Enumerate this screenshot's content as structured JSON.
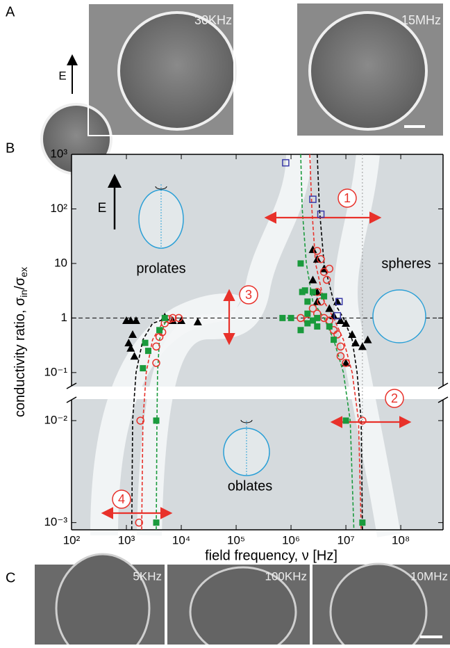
{
  "panels": {
    "a": "A",
    "b": "B",
    "c": "C"
  },
  "panel_a": {
    "field": "E",
    "images": [
      "30KHz",
      "15MHz"
    ]
  },
  "panel_c": {
    "images": [
      "5KHz",
      "100KHz",
      "10MHz"
    ]
  },
  "chart_data": {
    "type": "scatter",
    "xlabel": "field frequency, ν [Hz]",
    "ylabel": {
      "text": "conductivity ratio, σ",
      "sub1": "in",
      "mid": "/σ",
      "sub2": "ex"
    },
    "log_x": true,
    "log_y": true,
    "xlim": [
      100,
      590000000
    ],
    "xticks": [
      {
        "value": 100,
        "label": "10²"
      },
      {
        "value": 1000,
        "label": "10³"
      },
      {
        "value": 10000,
        "label": "10⁴"
      },
      {
        "value": 100000,
        "label": "10⁵"
      },
      {
        "value": 1000000,
        "label": "10⁶"
      },
      {
        "value": 10000000,
        "label": "10⁷"
      },
      {
        "value": 100000000,
        "label": "10⁸"
      }
    ],
    "ylim": [
      0.00085,
      1000
    ],
    "ybreak": [
      0.057,
      0.016
    ],
    "yticks": [
      {
        "value": 0.001,
        "label": "10⁻³"
      },
      {
        "value": 0.01,
        "label": "10⁻²"
      },
      {
        "value": 0.1,
        "label": "10⁻¹"
      },
      1,
      10,
      {
        "value": 100,
        "label": "10²"
      },
      {
        "value": 1000,
        "label": "10³"
      }
    ],
    "hlines": [
      1
    ],
    "vlines": [
      20000000
    ],
    "series": [
      {
        "color": "#000000",
        "marker": "triangle",
        "x": [
          1000,
          1200,
          1300,
          1100,
          1200,
          1500,
          1400,
          5000,
          7000,
          10000,
          20000,
          2500000,
          3000000,
          4000000,
          2500000,
          3000000,
          5000000,
          6000000,
          7000000,
          8000000,
          10000000,
          13000000,
          15000000,
          20000000,
          25000000,
          10000000,
          3000000
        ],
        "values": [
          0.9,
          0.9,
          0.5,
          0.35,
          0.28,
          0.9,
          0.2,
          1.05,
          0.9,
          0.9,
          0.85,
          18,
          12,
          8,
          5,
          3,
          1.5,
          1.1,
          2,
          0.9,
          0.8,
          0.5,
          0.35,
          0.3,
          0.4,
          0.15,
          2
        ]
      },
      {
        "color": "#e8312a",
        "marker": "circle",
        "x": [
          1800,
          1700,
          3500,
          3500,
          4000,
          4500,
          5000,
          6000,
          7000,
          9000,
          3000000,
          3500000,
          4000000,
          4500000,
          5000000,
          3000000,
          3500000,
          2500000,
          3000000,
          4000000,
          1500000,
          2000000,
          5000000,
          6000000,
          7000000,
          8000000,
          8000000,
          10000000,
          20000000
        ],
        "values": [
          0.01,
          0.001,
          0.15,
          0.3,
          0.45,
          0.55,
          0.8,
          0.95,
          1,
          1,
          17,
          12,
          7,
          5,
          8,
          3,
          2,
          1.5,
          1.2,
          1,
          1,
          0.9,
          0.9,
          0.6,
          0.5,
          0.3,
          0.2,
          0.15,
          0.01
        ]
      },
      {
        "color": "#1a9a3c",
        "marker": "square",
        "x": [
          2000,
          2200,
          2500,
          3500,
          3500,
          4000,
          5000,
          1500000,
          1600000,
          1800000,
          2000000,
          2500000,
          3000000,
          2000000,
          1500000,
          700000,
          1000000,
          2000000,
          4000000,
          5000000,
          6000000,
          10000000,
          20000000,
          2500000,
          3000000
        ],
        "values": [
          0.12,
          0.35,
          0.25,
          0.01,
          0.001,
          0.6,
          1,
          10,
          3,
          3.2,
          2,
          3,
          1,
          0.8,
          0.6,
          1,
          1,
          1.2,
          2.5,
          0.7,
          0.4,
          0.01,
          0.001,
          0.9,
          0.7
        ]
      },
      {
        "color": "#3a3aa8",
        "marker": "open-square",
        "x": [
          800000,
          2500000,
          3500000,
          7500000,
          7000000
        ],
        "values": [
          700,
          150,
          80,
          2,
          1.1
        ]
      }
    ],
    "fits": [
      {
        "color": "#000000",
        "x": [
          1250,
          1300,
          1500,
          2000,
          3000,
          5000,
          null,
          3000000,
          3300000,
          4000000,
          6000000,
          9000000,
          13000000,
          16000000,
          19000000,
          20000000
        ],
        "values": [
          0.00085,
          0.01,
          0.1,
          0.4,
          0.8,
          0.95,
          null,
          1000,
          100,
          10,
          2,
          1,
          0.4,
          0.1,
          0.01,
          0.00085
        ]
      },
      {
        "color": "#e8312a",
        "x": [
          1900,
          2000,
          2300,
          3000,
          4500,
          7000,
          null,
          2200000,
          2400000,
          2800000,
          4000000,
          6000000,
          9000000,
          13000000,
          17000000,
          19000000
        ],
        "values": [
          0.00085,
          0.01,
          0.1,
          0.4,
          0.8,
          0.95,
          null,
          1000,
          100,
          10,
          2,
          1,
          0.4,
          0.1,
          0.01,
          0.00085
        ]
      },
      {
        "color": "#1a9a3c",
        "x": [
          3500,
          3600,
          3700,
          4000,
          5000,
          6000,
          null,
          1500000,
          1600000,
          1900000,
          2500000,
          4000000,
          6000000,
          9000000,
          12000000,
          14000000
        ],
        "values": [
          0.00085,
          0.01,
          0.1,
          0.4,
          0.8,
          0.95,
          null,
          1000,
          100,
          10,
          2,
          1,
          0.4,
          0.1,
          0.01,
          0.00085
        ]
      }
    ],
    "field": "E",
    "regions": [
      "prolates",
      "spheres",
      "oblates"
    ],
    "annotations": [
      "1",
      "2",
      "3",
      "4"
    ]
  }
}
